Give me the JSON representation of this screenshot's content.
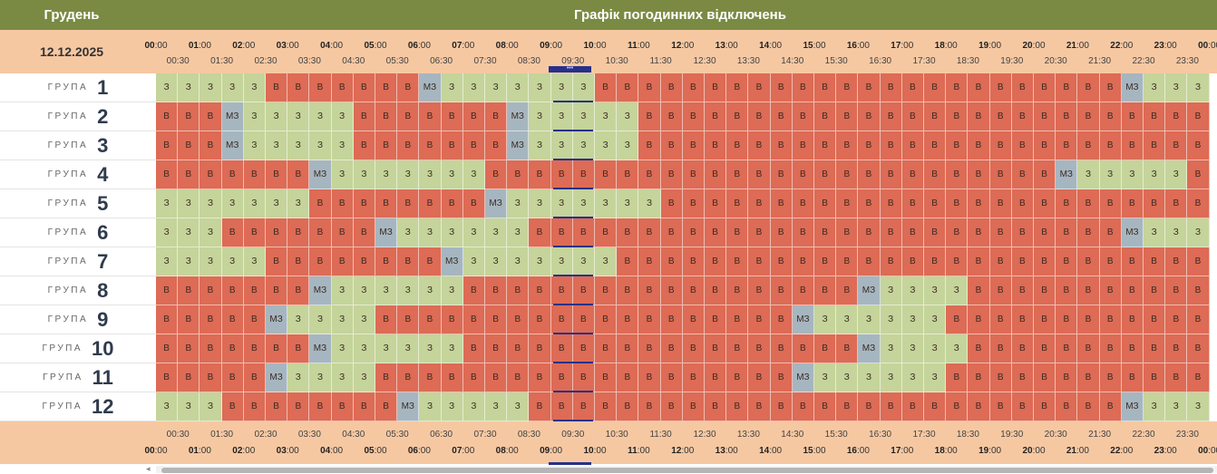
{
  "header": {
    "month": "Грудень",
    "title": "Графік погодинних відключень",
    "date": "12.12.2025"
  },
  "hour_labels": [
    "00:00",
    "01:00",
    "02:00",
    "03:00",
    "04:00",
    "05:00",
    "06:00",
    "07:00",
    "08:00",
    "09:00",
    "10:00",
    "11:00",
    "12:00",
    "13:00",
    "14:00",
    "15:00",
    "16:00",
    "17:00",
    "18:00",
    "19:00",
    "20:00",
    "21:00",
    "22:00",
    "23:00",
    "00:00"
  ],
  "half_labels": [
    "00:30",
    "01:30",
    "02:30",
    "03:30",
    "04:30",
    "05:30",
    "06:30",
    "07:30",
    "08:30",
    "09:30",
    "10:30",
    "11:30",
    "12:30",
    "13:30",
    "14:30",
    "15:30",
    "16:30",
    "17:30",
    "18:30",
    "19:30",
    "20:30",
    "21:30",
    "22:30",
    "23:30"
  ],
  "now_marker": "•••",
  "group_word": "ГРУПА",
  "status_text": {
    "3": "З",
    "v": "В",
    "m": "МЗ"
  },
  "status_colors": {
    "3": "#c5d49a",
    "v": "#dd6b55",
    "m": "#a6b6c0"
  },
  "groups": [
    {
      "label": "1",
      "slots": "33333vvvvvvvm3333333vvvvvvvvvvvvvvvvvvvvvvvvm33333vvvvvvvvvvvvvvvvvvvvvvvvvvvvvvvvvvvvvvvm333333"
    },
    {
      "label": "2",
      "slots": "vvvm33333vvvvvvvm33333vvvvvvvvvvvvvvvvvvvvvvvvvvvvvvvvvvvvvvvvvvvvm3333vvvvvvvvvvvvvvvvvvvvvvvvvvvvvvvvvvvvvm33"
    },
    {
      "label": "3",
      "slots": "vvvm33333vvvvvvvm33333vvvvvvvvvvvvvvvvvvvvvvvvvvvvvvvvvvvvvvvvvvvvm3333vvvvvvvvvvvvvvvvvvvvvvvvvvvvvvvvvvvvvm33"
    },
    {
      "label": "4",
      "slots": "vvvvvvvm3333333vvvvvvvvvvvvvvvvvvvvvvvvvvm33333vvvvvvvvvvvvvvvvvvvvvvvvvvvvvvvvvvvvvvvvm33333vv"
    },
    {
      "label": "5",
      "slots": "3333333vvvvvvvvm3333333vvvvvvvvvvvvvvvvvvvvvvvvvvvm333333vvvvvvvvvvvvvvvvvvvvvvvvvvvvvvvvvm3"
    },
    {
      "label": "6",
      "slots": "333vvvvvvvm333333vvvvvvvvvvvvvvvvvvvvvvvvvvvm33333vvvvvvvvvvvvvvvvvvvvvvvvvvvvvvvvvvvvvvvm333vvv"
    },
    {
      "label": "7",
      "slots": "33333vvvvvvvvm3333333vvvvvvvvvvvvvvvvvvvvvvvvvvvvvm333333vvvvvvvvvvvvvvvvvvvvvvvvvvvvvvvvvvm333"
    },
    {
      "label": "8",
      "slots": "vvvvvvvm333333vvvvvvvvvvvvvvvvvvm3333vvvvvvvvvvvvvvvvvvvvvvvvvvvvvvvvvm33333vvvvvvvvvvvvvvvvvvvvvvvvvv"
    },
    {
      "label": "9",
      "slots": "vvvvvm3333vvvvvvvvvvvvvvvvvvvm333333vvvvvvvvvvvvvvvvvvvvvvvvvvvvvvvvvm33333vvvvvvvvvvvvvvvvvvvvvvv"
    },
    {
      "label": "10",
      "slots": "vvvvvvvm333333vvvvvvvvvvvvvvvvvvm3333vvvvvvvvvvvvvvvvvvvvvvvvvvvvvvvvvm33333vvvvvvvvvvvvvvvvvvvvvvvvvv"
    },
    {
      "label": "11",
      "slots": "vvvvvm3333vvvvvvvvvvvvvvvvvvvm333333vvvvvvvvvvvvvvvvvvvvvvvvvvvvvvvvvm33333vvvvvvvvvvvvvvvvvvvvvvv"
    },
    {
      "label": "12",
      "slots": "333vvvvvvvvm33333vvvvvvvvvvvvvvvvvvvvvvvvvvvm33333vvvvvvvvvvvvvvvvvvvvvvvvvvvvvvvvvvvvvvvm333333vvv"
    }
  ]
}
